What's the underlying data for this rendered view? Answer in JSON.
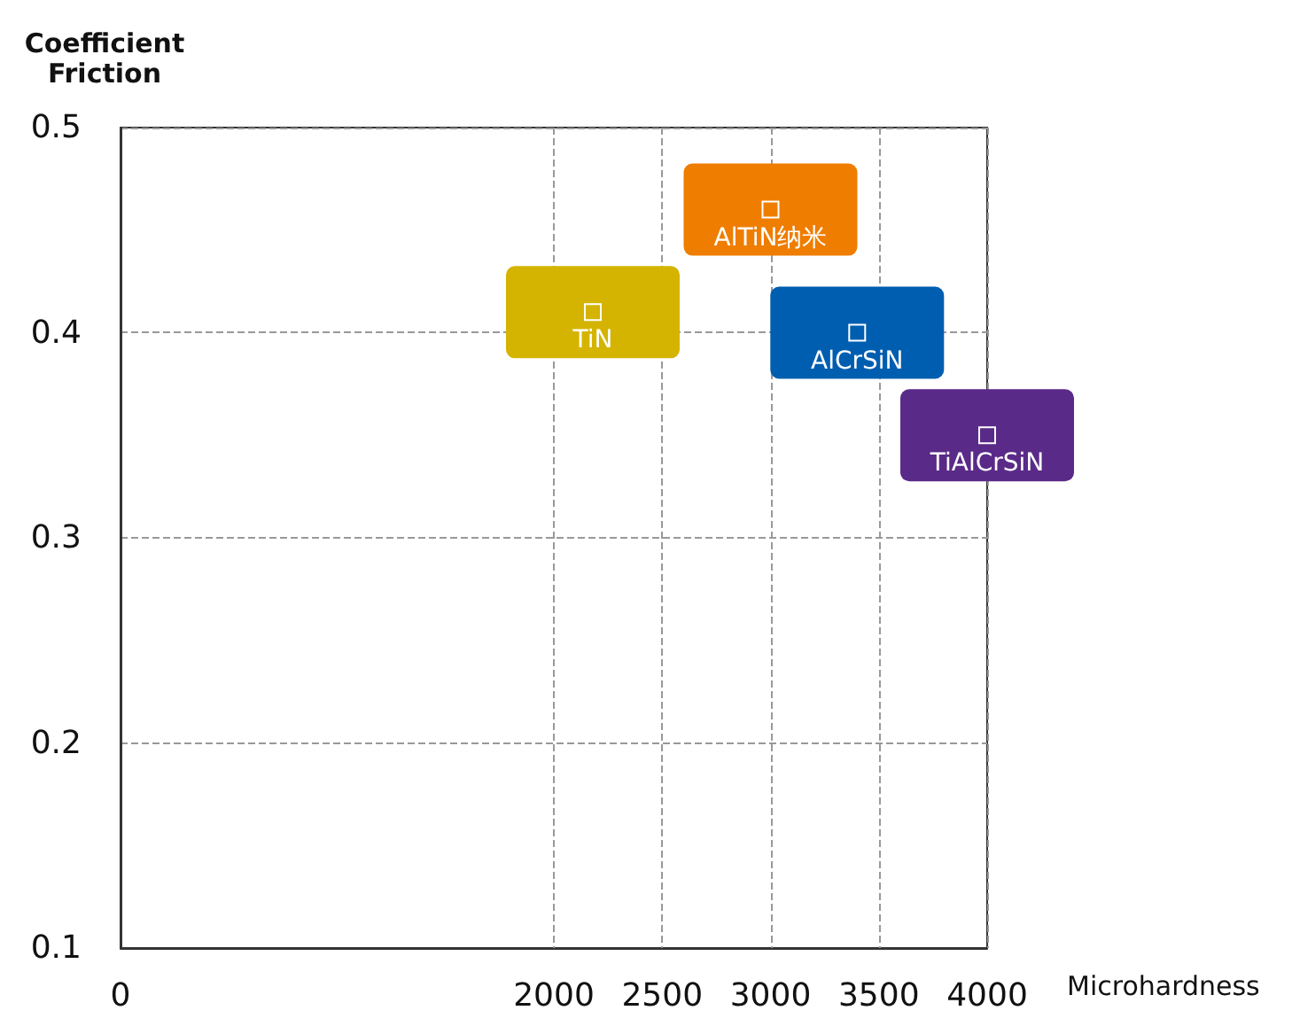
{
  "chart_data": {
    "type": "scatter",
    "xlabel": "Microhardness",
    "ylabel": "Coefficient\nFriction",
    "xlim": [
      0,
      4000
    ],
    "xticks": [
      0,
      2000,
      2500,
      3000,
      3500,
      4000
    ],
    "ylim": [
      0.1,
      0.5
    ],
    "yticks": [
      0.1,
      0.2,
      0.3,
      0.4,
      0.5
    ],
    "grid": true,
    "legend": false,
    "marker": "square",
    "series": [
      {
        "name": "TiN",
        "color": "#d4b400",
        "x": [
          2180
        ],
        "values": [
          0.41
        ]
      },
      {
        "name": "AlTiN纳米",
        "color": "#ef7d00",
        "x": [
          3000
        ],
        "values": [
          0.46
        ]
      },
      {
        "name": "AlCrSiN",
        "color": "#005eb0",
        "x": [
          3400
        ],
        "values": [
          0.4
        ]
      },
      {
        "name": "TiAlCrSiN",
        "color": "#5a2a88",
        "x": [
          4000
        ],
        "values": [
          0.35
        ]
      }
    ]
  }
}
